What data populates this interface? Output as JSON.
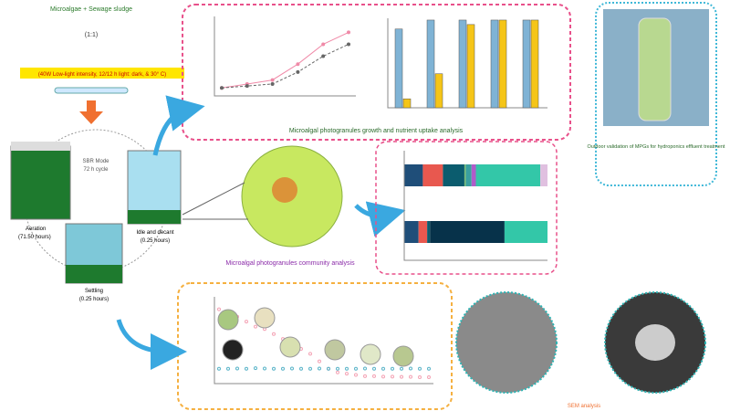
{
  "title": "Microalgae + Sewage sludge",
  "ratio": "(1:1)",
  "conditions": "(40W Low-light intensity, 12/12 h light: dark, & 30° C)",
  "sbr": {
    "mode": "SBR Mode",
    "cycle": "72 h cycle"
  },
  "stages": {
    "aeration": "Aeration",
    "aeration_time": "(71.50 hours)",
    "idle": "Idle and decant",
    "idle_time": "(0.25 hours)",
    "settling": "Settling",
    "settling_time": "(0.25 hours)"
  },
  "growth": {
    "caption": "Microalgal photogranules growth and nutrient uptake analysis",
    "line": {
      "ylim": [
        0,
        20
      ],
      "series": [
        {
          "color": "#f08aa8",
          "values": [
            2,
            3,
            4,
            8,
            13,
            16
          ]
        },
        {
          "color": "#666666",
          "values": [
            2,
            2.5,
            3,
            6,
            10,
            13
          ]
        }
      ]
    },
    "bars": {
      "ylim": [
        0,
        100
      ],
      "series": [
        {
          "color": "#7fb3d5",
          "values": [
            88,
            98,
            98,
            98,
            98
          ]
        },
        {
          "color": "#f5c518",
          "values": [
            10,
            38,
            93,
            98,
            98
          ]
        }
      ]
    }
  },
  "community": {
    "caption": "Microalgal photogranules community analysis",
    "rows": [
      {
        "values": [
          13,
          14,
          15,
          1,
          4,
          3,
          45,
          5
        ],
        "colors": [
          "#1f4e79",
          "#e8584f",
          "#0b5c6e",
          "#7dbf7a",
          "#3aa0a0",
          "#b05cc9",
          "#33c7a8",
          "#e0c0e0"
        ]
      },
      {
        "values": [
          10,
          6,
          2,
          52,
          30
        ],
        "colors": [
          "#1f4e79",
          "#e8584f",
          "#0b5c6e",
          "#07324a",
          "#33c7a8"
        ]
      }
    ]
  },
  "settling": {
    "ylim": [
      0,
      350
    ],
    "series": [
      {
        "color": "#f4a3b5",
        "values": [
          300,
          290,
          270,
          250,
          230,
          220,
          200,
          180,
          160,
          140,
          120,
          90,
          60,
          45,
          40,
          35,
          30,
          30,
          28,
          28,
          27,
          27,
          26,
          26
        ]
      },
      {
        "color": "#5ab4c8",
        "values": [
          60,
          60,
          61,
          60,
          62,
          61,
          60,
          60,
          61,
          60,
          60,
          61,
          60,
          60,
          60,
          60,
          61,
          60,
          60,
          60,
          60,
          61,
          60,
          60
        ]
      }
    ]
  },
  "outdoor": {
    "caption": "Outdoor validation of MPGs for hydroponics effluent treatment"
  },
  "sem": "SEM analysis"
}
